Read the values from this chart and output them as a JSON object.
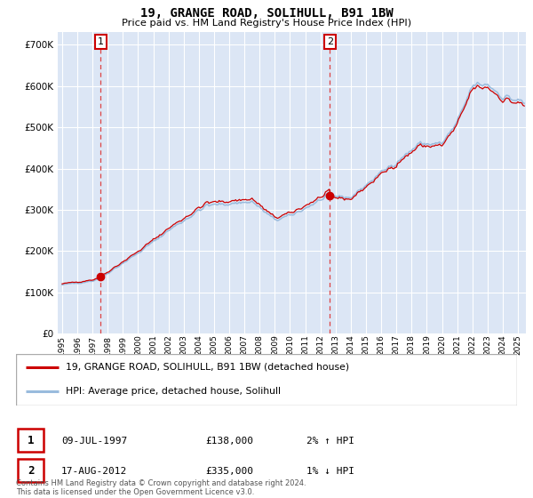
{
  "title": "19, GRANGE ROAD, SOLIHULL, B91 1BW",
  "subtitle": "Price paid vs. HM Land Registry's House Price Index (HPI)",
  "legend_line1": "19, GRANGE ROAD, SOLIHULL, B91 1BW (detached house)",
  "legend_line2": "HPI: Average price, detached house, Solihull",
  "sale1_label": "1",
  "sale1_date": "09-JUL-1997",
  "sale1_price": "£138,000",
  "sale1_hpi": "2% ↑ HPI",
  "sale1_year": 1997.53,
  "sale1_value": 138000,
  "sale2_label": "2",
  "sale2_date": "17-AUG-2012",
  "sale2_price": "£335,000",
  "sale2_hpi": "1% ↓ HPI",
  "sale2_year": 2012.63,
  "sale2_value": 335000,
  "footer": "Contains HM Land Registry data © Crown copyright and database right 2024.\nThis data is licensed under the Open Government Licence v3.0.",
  "bg_color": "#dce6f5",
  "grid_color": "#ffffff",
  "line_color_red": "#cc0000",
  "line_color_blue": "#99bbdd",
  "dashed_color": "#dd4444",
  "ylim_max": 730000,
  "xlim_start": 1994.7,
  "xlim_end": 2025.5,
  "yticks": [
    0,
    100000,
    200000,
    300000,
    400000,
    500000,
    600000,
    700000
  ],
  "xticks": [
    1995,
    1996,
    1997,
    1998,
    1999,
    2000,
    2001,
    2002,
    2003,
    2004,
    2005,
    2006,
    2007,
    2008,
    2009,
    2010,
    2011,
    2012,
    2013,
    2014,
    2015,
    2016,
    2017,
    2018,
    2019,
    2020,
    2021,
    2022,
    2023,
    2024,
    2025
  ]
}
